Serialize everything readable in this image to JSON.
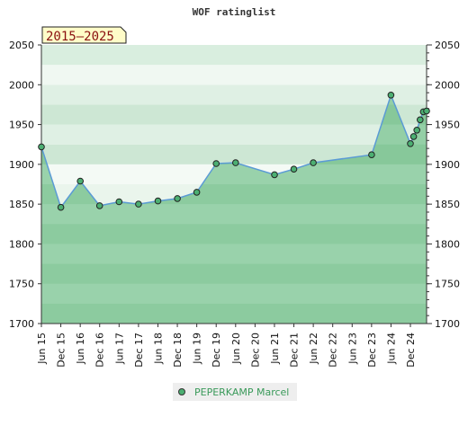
{
  "chart_data": {
    "type": "area",
    "title": "WOF ratinglist",
    "period_label": "2015–2025",
    "xlabel": "",
    "ylabel": "",
    "ylim": [
      1700,
      2050
    ],
    "y_ticks": [
      1700,
      1750,
      1800,
      1850,
      1900,
      1950,
      2000,
      2050
    ],
    "x_tick_labels": [
      "Jun 15",
      "Dec 15",
      "Jun 16",
      "Dec 16",
      "Jun 17",
      "Dec 17",
      "Jun 18",
      "Dec 18",
      "Jun 19",
      "Dec 19",
      "Jun 20",
      "Dec 20",
      "Jun 21",
      "Dec 21",
      "Jun 22",
      "Dec 22",
      "Jun 23",
      "Dec 23",
      "Jun 24",
      "Dec 24"
    ],
    "grid": true,
    "legend_position": "bottom-center",
    "colors": {
      "line": "#5b9bd5",
      "fill": "#7bc492",
      "marker": "#4caf72",
      "legend_text": "#3a9a5a",
      "period_bg": "#fffcc8"
    },
    "series": [
      {
        "name": "PEPERKAMP Marcel",
        "points": [
          {
            "x": "2015-06",
            "y": 1922
          },
          {
            "x": "2015-12",
            "y": 1846
          },
          {
            "x": "2016-06",
            "y": 1879
          },
          {
            "x": "2016-12",
            "y": 1848
          },
          {
            "x": "2017-06",
            "y": 1853
          },
          {
            "x": "2017-12",
            "y": 1850
          },
          {
            "x": "2018-06",
            "y": 1854
          },
          {
            "x": "2018-12",
            "y": 1857
          },
          {
            "x": "2019-06",
            "y": 1865
          },
          {
            "x": "2019-12",
            "y": 1901
          },
          {
            "x": "2020-06",
            "y": 1902
          },
          {
            "x": "2021-06",
            "y": 1887
          },
          {
            "x": "2021-12",
            "y": 1894
          },
          {
            "x": "2022-06",
            "y": 1902
          },
          {
            "x": "2023-12",
            "y": 1912
          },
          {
            "x": "2024-06",
            "y": 1987
          },
          {
            "x": "2024-12",
            "y": 1926
          },
          {
            "x": "2025-01",
            "y": 1935
          },
          {
            "x": "2025-02",
            "y": 1943
          },
          {
            "x": "2025-03",
            "y": 1956
          },
          {
            "x": "2025-04",
            "y": 1966
          },
          {
            "x": "2025-05",
            "y": 1967
          }
        ]
      }
    ]
  }
}
